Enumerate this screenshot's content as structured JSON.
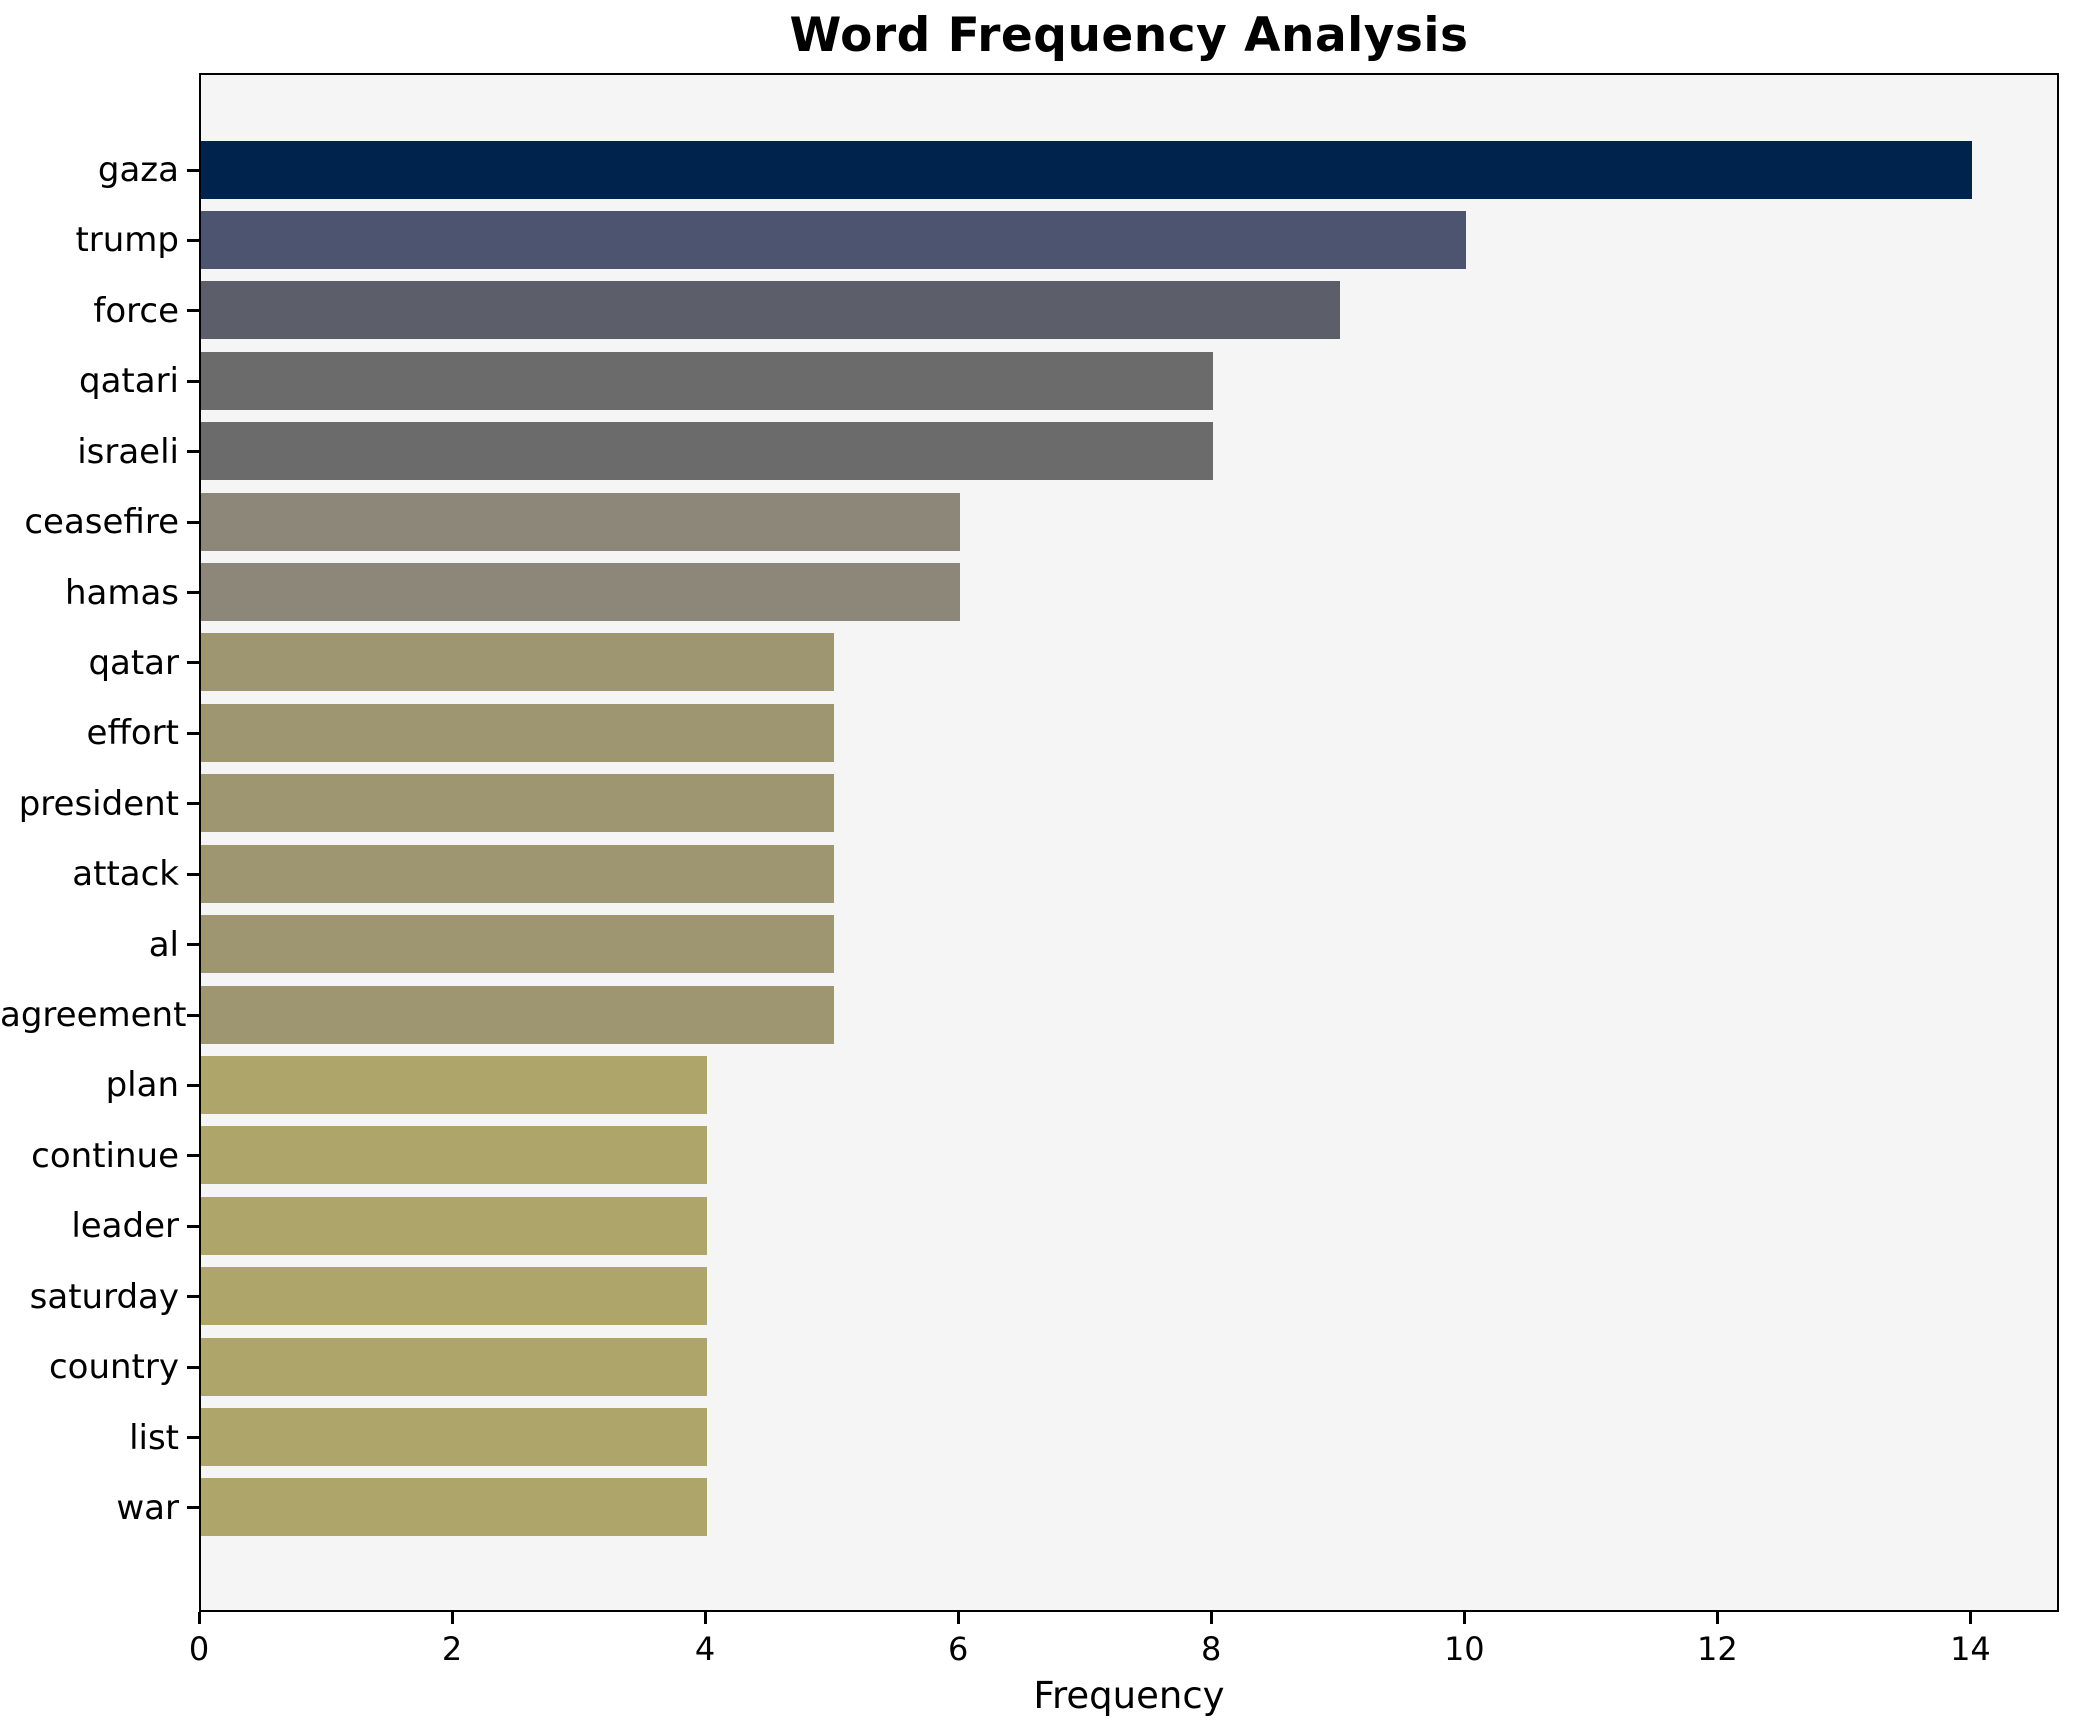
{
  "title": "Word Frequency Analysis",
  "colors": {
    "figure_bg": "#ffffff",
    "axes_bg": "#f5f5f6",
    "spine": "#000000",
    "text": "#000000"
  },
  "chart_data": {
    "type": "bar",
    "orientation": "horizontal",
    "title": "Word Frequency Analysis",
    "xlabel": "Frequency",
    "ylabel": "",
    "grid": false,
    "legend_position": "none",
    "xlim": [
      0,
      14.7
    ],
    "xticks": [
      0,
      2,
      4,
      6,
      8,
      10,
      12,
      14
    ],
    "categories": [
      "gaza",
      "trump",
      "force",
      "qatari",
      "israeli",
      "ceasefire",
      "hamas",
      "qatar",
      "effort",
      "president",
      "attack",
      "al",
      "agreement",
      "plan",
      "continue",
      "leader",
      "saturday",
      "country",
      "list",
      "war"
    ],
    "values": [
      14,
      10,
      9,
      8,
      8,
      6,
      6,
      5,
      5,
      5,
      5,
      5,
      5,
      4,
      4,
      4,
      4,
      4,
      4,
      4
    ],
    "bar_colors": [
      "#00234e",
      "#4c546f",
      "#5c5f69",
      "#6c6b6b",
      "#6c6b6b",
      "#8d8779",
      "#8d8779",
      "#9d9671",
      "#9d9671",
      "#9d9671",
      "#9d9671",
      "#9d9671",
      "#9d9671",
      "#ada56a",
      "#ada56a",
      "#ada56a",
      "#ada56a",
      "#ada56a",
      "#ada56a",
      "#ada56a"
    ]
  }
}
